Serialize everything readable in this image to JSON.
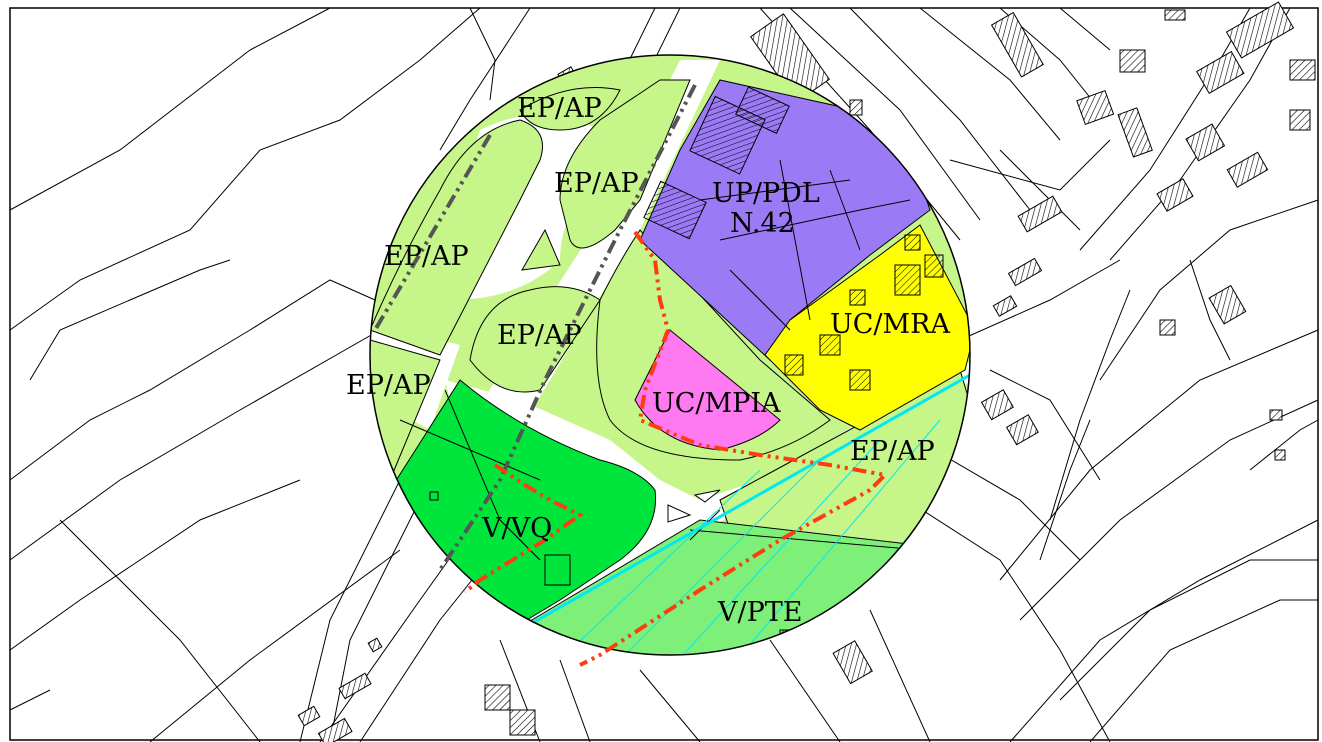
{
  "map": {
    "zones": [
      {
        "id": "epap_top",
        "label": "EP/AP",
        "color": "#c6f58a"
      },
      {
        "id": "epap_upper_mid",
        "label": "EP/AP",
        "color": "#c6f58a"
      },
      {
        "id": "epap_left",
        "label": "EP/AP",
        "color": "#c6f58a"
      },
      {
        "id": "epap_center",
        "label": "EP/AP",
        "color": "#c6f58a"
      },
      {
        "id": "epap_lower_left",
        "label": "EP/AP",
        "color": "#c6f58a"
      },
      {
        "id": "epap_right",
        "label": "EP/AP",
        "color": "#c6f58a"
      },
      {
        "id": "up_pdl",
        "label": "UP/PDL",
        "sublabel": "N.42",
        "color": "#9b7bf5"
      },
      {
        "id": "uc_mra",
        "label": "UC/MRA",
        "color": "#ffff00"
      },
      {
        "id": "uc_mpia",
        "label": "UC/MPIA",
        "color": "#ff7af0"
      },
      {
        "id": "v_vq",
        "label": "V/VQ",
        "color": "#00e53c"
      },
      {
        "id": "v_pte",
        "label": "V/PTE",
        "color": "#7ef07a"
      }
    ],
    "colors": {
      "background": "#ffffff",
      "lines": "#000000",
      "orange_boundary": "#ff3b10",
      "grey_axis": "#555555",
      "cyan_lines": "#00e8f0"
    }
  }
}
